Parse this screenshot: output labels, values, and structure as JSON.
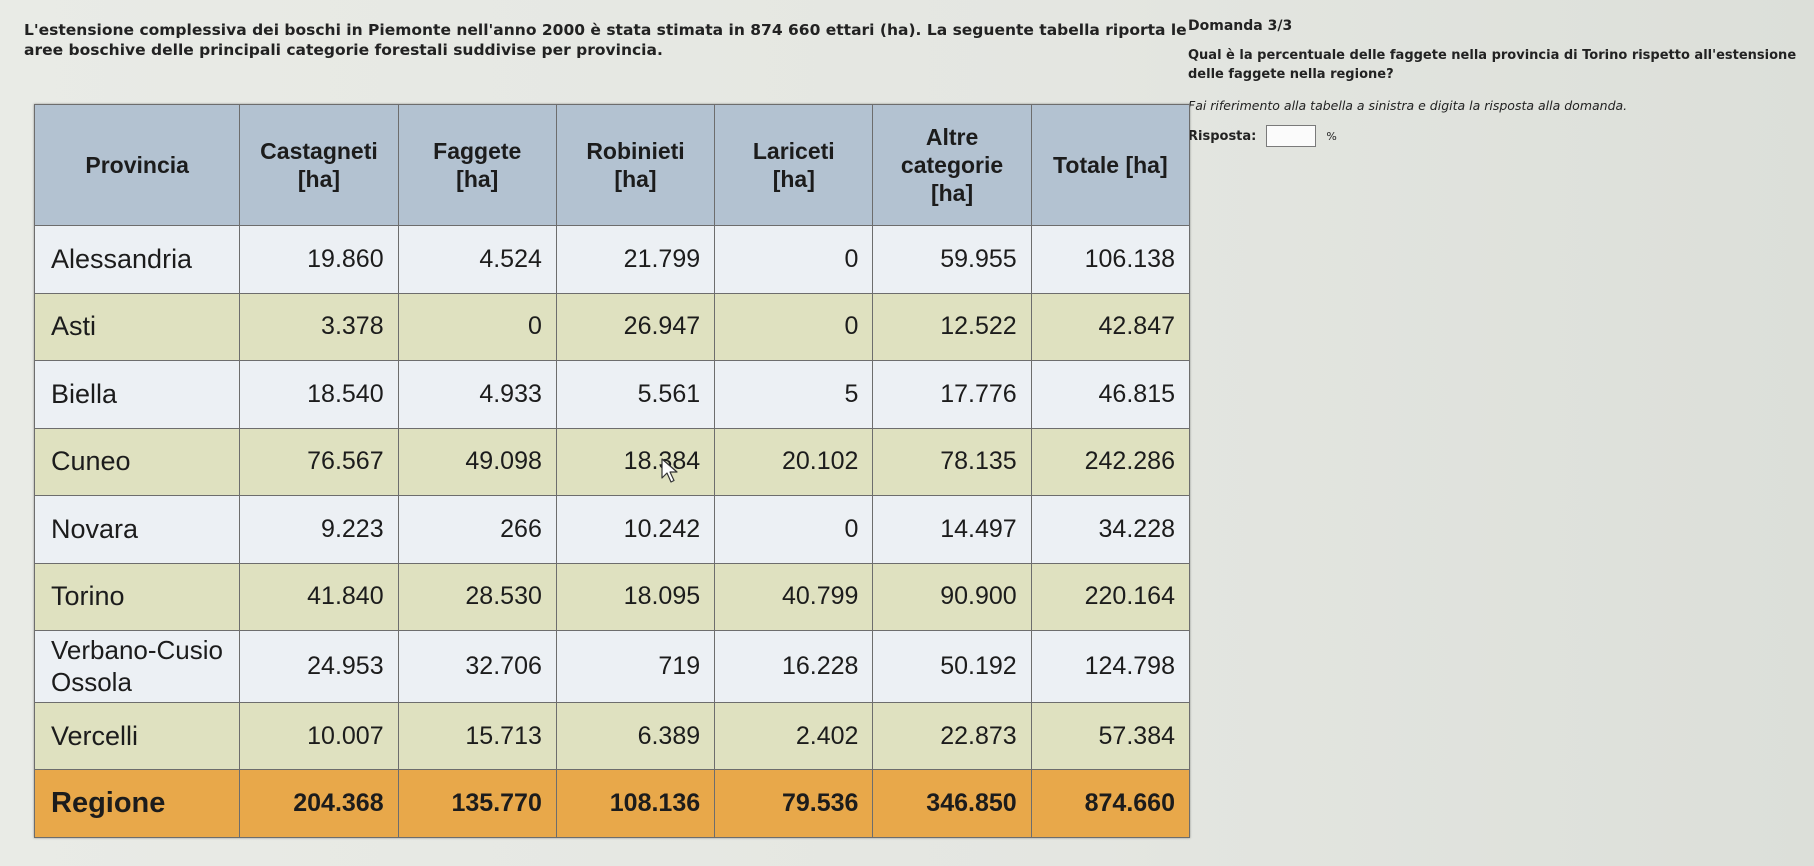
{
  "intro": {
    "text": "L'estensione complessiva dei boschi in Piemonte nell'anno 2000 è stata stimata in 874 660 ettari (ha). La seguente tabella riporta le aree boschive delle principali categorie forestali suddivise per provincia."
  },
  "question_panel": {
    "number": "Domanda 3/3",
    "question": "Qual è la percentuale delle faggete nella provincia di Torino rispetto all'estensione delle faggete nella regione?",
    "instructions": "Fai riferimento alla tabella a sinistra e digita la risposta alla domanda.",
    "answer_label": "Risposta:",
    "answer_value": "",
    "answer_unit": "%"
  },
  "table": {
    "headers": [
      "Provincia",
      "Castagneti [ha]",
      "Faggete [ha]",
      "Robinieti [ha]",
      "Lariceti [ha]",
      "Altre categorie [ha]",
      "Totale [ha]"
    ],
    "rows": [
      [
        "Alessandria",
        "19.860",
        "4.524",
        "21.799",
        "0",
        "59.955",
        "106.138"
      ],
      [
        "Asti",
        "3.378",
        "0",
        "26.947",
        "0",
        "12.522",
        "42.847"
      ],
      [
        "Biella",
        "18.540",
        "4.933",
        "5.561",
        "5",
        "17.776",
        "46.815"
      ],
      [
        "Cuneo",
        "76.567",
        "49.098",
        "18.384",
        "20.102",
        "78.135",
        "242.286"
      ],
      [
        "Novara",
        "9.223",
        "266",
        "10.242",
        "0",
        "14.497",
        "34.228"
      ],
      [
        "Torino",
        "41.840",
        "28.530",
        "18.095",
        "40.799",
        "90.900",
        "220.164"
      ],
      [
        "Verbano-Cusio Ossola",
        "24.953",
        "32.706",
        "719",
        "16.228",
        "50.192",
        "124.798"
      ],
      [
        "Vercelli",
        "10.007",
        "15.713",
        "6.389",
        "2.402",
        "22.873",
        "57.384"
      ]
    ],
    "total_row": [
      "Regione",
      "204.368",
      "135.770",
      "108.136",
      "79.536",
      "346.850",
      "874.660"
    ]
  },
  "colors": {
    "header_bg": "#b3c2d1",
    "row_light": "#ecf0f4",
    "row_olive": "#dfe1c0",
    "total_bg": "#e8a84a"
  },
  "icons": {
    "cursor": "mouse-pointer-icon"
  }
}
